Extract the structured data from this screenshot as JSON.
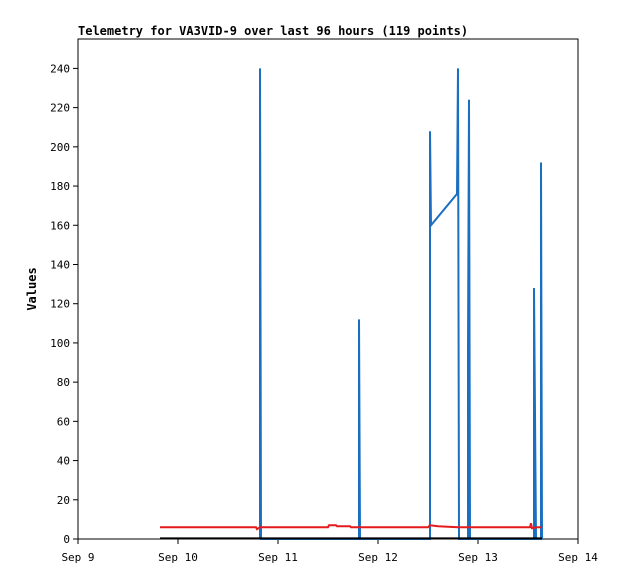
{
  "chart_data": {
    "type": "line",
    "title": "Telemetry for VA3VID-9 over last 96 hours (119 points)",
    "xlabel": "",
    "ylabel": "Values",
    "xlim": [
      9,
      14
    ],
    "ylim": [
      0,
      255
    ],
    "x_ticks": [
      {
        "value": 9,
        "label": "Sep 9"
      },
      {
        "value": 10,
        "label": "Sep 10"
      },
      {
        "value": 11,
        "label": "Sep 11"
      },
      {
        "value": 12,
        "label": "Sep 12"
      },
      {
        "value": 13,
        "label": "Sep 13"
      },
      {
        "value": 14,
        "label": "Sep 14"
      }
    ],
    "y_ticks": [
      0,
      20,
      40,
      60,
      80,
      100,
      120,
      140,
      160,
      180,
      200,
      220,
      240
    ],
    "grid": false,
    "legend": "none",
    "series": [
      {
        "color": "#1a6fc1",
        "points": [
          [
            10.82,
            0
          ],
          [
            10.82,
            240
          ],
          [
            10.83,
            0
          ],
          [
            11.81,
            0
          ],
          [
            11.81,
            112
          ],
          [
            11.82,
            0
          ],
          [
            12.52,
            0
          ],
          [
            12.52,
            208
          ],
          [
            12.53,
            160
          ],
          [
            12.79,
            176
          ],
          [
            12.8,
            240
          ],
          [
            12.81,
            0
          ],
          [
            12.9,
            0
          ],
          [
            12.9,
            97
          ],
          [
            12.91,
            224
          ],
          [
            12.92,
            0
          ],
          [
            13.56,
            0
          ],
          [
            13.56,
            128
          ],
          [
            13.57,
            64
          ],
          [
            13.58,
            0
          ],
          [
            13.63,
            0
          ],
          [
            13.63,
            192
          ],
          [
            13.64,
            0
          ]
        ]
      },
      {
        "color": "#e41a1c",
        "points": [
          [
            9.82,
            6
          ],
          [
            10.78,
            6
          ],
          [
            10.79,
            5
          ],
          [
            10.82,
            6
          ],
          [
            11.5,
            6
          ],
          [
            11.51,
            7
          ],
          [
            11.58,
            7
          ],
          [
            11.59,
            6.5
          ],
          [
            11.72,
            6.5
          ],
          [
            11.73,
            6
          ],
          [
            12.5,
            6
          ],
          [
            12.52,
            7
          ],
          [
            12.6,
            6.5
          ],
          [
            12.8,
            6
          ],
          [
            13.52,
            6
          ],
          [
            13.53,
            8
          ],
          [
            13.54,
            5.5
          ],
          [
            13.6,
            6
          ],
          [
            13.64,
            6
          ]
        ]
      },
      {
        "color": "#000000",
        "points": [
          [
            9.82,
            0.3
          ],
          [
            13.64,
            0.3
          ]
        ]
      }
    ]
  }
}
